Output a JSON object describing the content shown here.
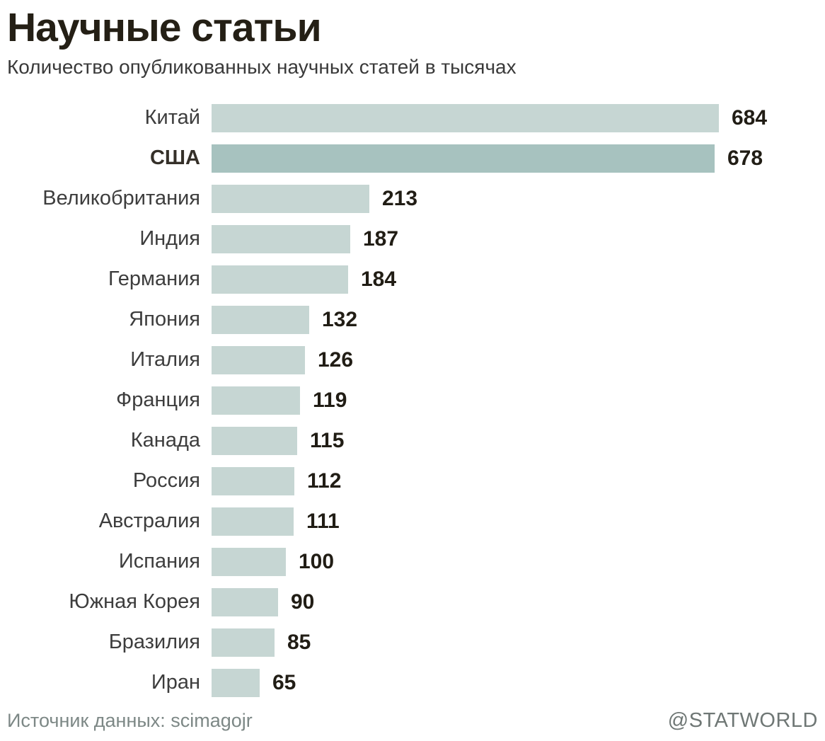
{
  "title": "Научные статьи",
  "subtitle": "Количество опубликованных научных статей в тысячах",
  "footer": {
    "source": "Источник данных: scimagojr",
    "credit": "@STATWORLD"
  },
  "colors": {
    "bar": "#c6d6d3",
    "bar_highlight": "#a7c2bf",
    "title_text": "#241f15",
    "subtitle_text": "#3a3a3a",
    "label_text": "#3d3d3d",
    "value_text": "#211d15",
    "footer_text": "#7d8886"
  },
  "chart_data": {
    "type": "bar",
    "orientation": "horizontal",
    "title": "Научные статьи",
    "subtitle": "Количество опубликованных научных статей в тысячах",
    "unit": "thousands of published scientific articles",
    "xlim": [
      0,
      684
    ],
    "grid": false,
    "legend": false,
    "categories": [
      "Китай",
      "США",
      "Великобритания",
      "Индия",
      "Германия",
      "Япония",
      "Италия",
      "Франция",
      "Канада",
      "Россия",
      "Австралия",
      "Испания",
      "Южная Корея",
      "Бразилия",
      "Иран"
    ],
    "values": [
      684,
      678,
      213,
      187,
      184,
      132,
      126,
      119,
      115,
      112,
      111,
      100,
      90,
      85,
      65
    ],
    "highlighted_category": "США",
    "value_labels_shown": true,
    "source": "scimagojr"
  }
}
